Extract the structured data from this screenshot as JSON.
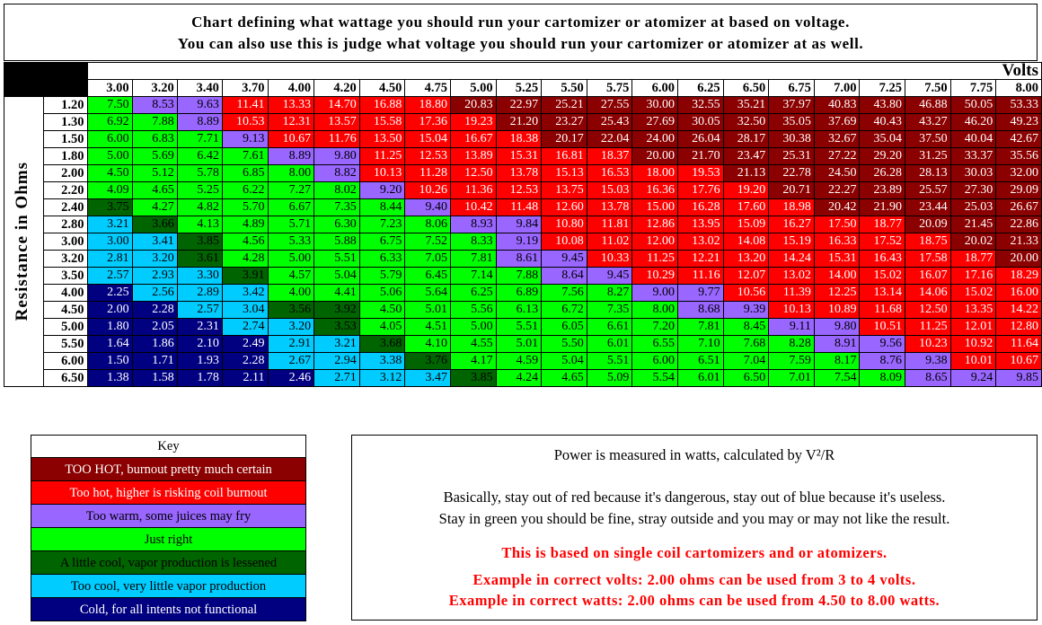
{
  "title": {
    "line1": "Chart defining what wattage you should run your cartomizer or atomizer at based on voltage.",
    "line2": "You can also use this is judge what voltage you should run your cartomizer or atomizer at as well."
  },
  "colors": {
    "dark": "#8B0000",
    "red": "#FF0000",
    "purple": "#9966FF",
    "green": "#00FF00",
    "dgreen": "#006400",
    "cyan": "#00CCFF",
    "blue": "#000080"
  },
  "chart_data": {
    "type": "heatmap",
    "xlabel": "Volts",
    "ylabel": "Resistance in Ohms",
    "x": [
      "3.00",
      "3.20",
      "3.40",
      "3.70",
      "4.00",
      "4.20",
      "4.50",
      "4.75",
      "5.00",
      "5.25",
      "5.50",
      "5.75",
      "6.00",
      "6.25",
      "6.50",
      "6.75",
      "7.00",
      "7.25",
      "7.50",
      "7.75",
      "8.00"
    ],
    "y": [
      "1.20",
      "1.30",
      "1.50",
      "1.80",
      "2.00",
      "2.20",
      "2.40",
      "2.80",
      "3.00",
      "3.20",
      "3.50",
      "4.00",
      "4.50",
      "5.00",
      "5.50",
      "6.00",
      "6.50"
    ],
    "values": [
      [
        "7.50",
        "8.53",
        "9.63",
        "11.41",
        "13.33",
        "14.70",
        "16.88",
        "18.80",
        "20.83",
        "22.97",
        "25.21",
        "27.55",
        "30.00",
        "32.55",
        "35.21",
        "37.97",
        "40.83",
        "43.80",
        "46.88",
        "50.05",
        "53.33"
      ],
      [
        "6.92",
        "7.88",
        "8.89",
        "10.53",
        "12.31",
        "13.57",
        "15.58",
        "17.36",
        "19.23",
        "21.20",
        "23.27",
        "25.43",
        "27.69",
        "30.05",
        "32.50",
        "35.05",
        "37.69",
        "40.43",
        "43.27",
        "46.20",
        "49.23"
      ],
      [
        "6.00",
        "6.83",
        "7.71",
        "9.13",
        "10.67",
        "11.76",
        "13.50",
        "15.04",
        "16.67",
        "18.38",
        "20.17",
        "22.04",
        "24.00",
        "26.04",
        "28.17",
        "30.38",
        "32.67",
        "35.04",
        "37.50",
        "40.04",
        "42.67"
      ],
      [
        "5.00",
        "5.69",
        "6.42",
        "7.61",
        "8.89",
        "9.80",
        "11.25",
        "12.53",
        "13.89",
        "15.31",
        "16.81",
        "18.37",
        "20.00",
        "21.70",
        "23.47",
        "25.31",
        "27.22",
        "29.20",
        "31.25",
        "33.37",
        "35.56"
      ],
      [
        "4.50",
        "5.12",
        "5.78",
        "6.85",
        "8.00",
        "8.82",
        "10.13",
        "11.28",
        "12.50",
        "13.78",
        "15.13",
        "16.53",
        "18.00",
        "19.53",
        "21.13",
        "22.78",
        "24.50",
        "26.28",
        "28.13",
        "30.03",
        "32.00"
      ],
      [
        "4.09",
        "4.65",
        "5.25",
        "6.22",
        "7.27",
        "8.02",
        "9.20",
        "10.26",
        "11.36",
        "12.53",
        "13.75",
        "15.03",
        "16.36",
        "17.76",
        "19.20",
        "20.71",
        "22.27",
        "23.89",
        "25.57",
        "27.30",
        "29.09"
      ],
      [
        "3.75",
        "4.27",
        "4.82",
        "5.70",
        "6.67",
        "7.35",
        "8.44",
        "9.40",
        "10.42",
        "11.48",
        "12.60",
        "13.78",
        "15.00",
        "16.28",
        "17.60",
        "18.98",
        "20.42",
        "21.90",
        "23.44",
        "25.03",
        "26.67"
      ],
      [
        "3.21",
        "3.66",
        "4.13",
        "4.89",
        "5.71",
        "6.30",
        "7.23",
        "8.06",
        "8.93",
        "9.84",
        "10.80",
        "11.81",
        "12.86",
        "13.95",
        "15.09",
        "16.27",
        "17.50",
        "18.77",
        "20.09",
        "21.45",
        "22.86"
      ],
      [
        "3.00",
        "3.41",
        "3.85",
        "4.56",
        "5.33",
        "5.88",
        "6.75",
        "7.52",
        "8.33",
        "9.19",
        "10.08",
        "11.02",
        "12.00",
        "13.02",
        "14.08",
        "15.19",
        "16.33",
        "17.52",
        "18.75",
        "20.02",
        "21.33"
      ],
      [
        "2.81",
        "3.20",
        "3.61",
        "4.28",
        "5.00",
        "5.51",
        "6.33",
        "7.05",
        "7.81",
        "8.61",
        "9.45",
        "10.33",
        "11.25",
        "12.21",
        "13.20",
        "14.24",
        "15.31",
        "16.43",
        "17.58",
        "18.77",
        "20.00"
      ],
      [
        "2.57",
        "2.93",
        "3.30",
        "3.91",
        "4.57",
        "5.04",
        "5.79",
        "6.45",
        "7.14",
        "7.88",
        "8.64",
        "9.45",
        "10.29",
        "11.16",
        "12.07",
        "13.02",
        "14.00",
        "15.02",
        "16.07",
        "17.16",
        "18.29"
      ],
      [
        "2.25",
        "2.56",
        "2.89",
        "3.42",
        "4.00",
        "4.41",
        "5.06",
        "5.64",
        "6.25",
        "6.89",
        "7.56",
        "8.27",
        "9.00",
        "9.77",
        "10.56",
        "11.39",
        "12.25",
        "13.14",
        "14.06",
        "15.02",
        "16.00"
      ],
      [
        "2.00",
        "2.28",
        "2.57",
        "3.04",
        "3.56",
        "3.92",
        "4.50",
        "5.01",
        "5.56",
        "6.13",
        "6.72",
        "7.35",
        "8.00",
        "8.68",
        "9.39",
        "10.13",
        "10.89",
        "11.68",
        "12.50",
        "13.35",
        "14.22"
      ],
      [
        "1.80",
        "2.05",
        "2.31",
        "2.74",
        "3.20",
        "3.53",
        "4.05",
        "4.51",
        "5.00",
        "5.51",
        "6.05",
        "6.61",
        "7.20",
        "7.81",
        "8.45",
        "9.11",
        "9.80",
        "10.51",
        "11.25",
        "12.01",
        "12.80"
      ],
      [
        "1.64",
        "1.86",
        "2.10",
        "2.49",
        "2.91",
        "3.21",
        "3.68",
        "4.10",
        "4.55",
        "5.01",
        "5.50",
        "6.01",
        "6.55",
        "7.10",
        "7.68",
        "8.28",
        "8.91",
        "9.56",
        "10.23",
        "10.92",
        "11.64"
      ],
      [
        "1.50",
        "1.71",
        "1.93",
        "2.28",
        "2.67",
        "2.94",
        "3.38",
        "3.76",
        "4.17",
        "4.59",
        "5.04",
        "5.51",
        "6.00",
        "6.51",
        "7.04",
        "7.59",
        "8.17",
        "8.76",
        "9.38",
        "10.01",
        "10.67"
      ],
      [
        "1.38",
        "1.58",
        "1.78",
        "2.11",
        "2.46",
        "2.71",
        "3.12",
        "3.47",
        "3.85",
        "4.24",
        "4.65",
        "5.09",
        "5.54",
        "6.01",
        "6.50",
        "7.01",
        "7.54",
        "8.09",
        "8.65",
        "9.24",
        "9.85"
      ]
    ],
    "categories_by_cell": [
      [
        "green",
        "purple",
        "purple",
        "red",
        "red",
        "red",
        "red",
        "red",
        "dark",
        "dark",
        "dark",
        "dark",
        "dark",
        "dark",
        "dark",
        "dark",
        "dark",
        "dark",
        "dark",
        "dark",
        "dark"
      ],
      [
        "green",
        "green",
        "purple",
        "red",
        "red",
        "red",
        "red",
        "red",
        "red",
        "dark",
        "dark",
        "dark",
        "dark",
        "dark",
        "dark",
        "dark",
        "dark",
        "dark",
        "dark",
        "dark",
        "dark"
      ],
      [
        "green",
        "green",
        "green",
        "purple",
        "red",
        "red",
        "red",
        "red",
        "red",
        "red",
        "dark",
        "dark",
        "dark",
        "dark",
        "dark",
        "dark",
        "dark",
        "dark",
        "dark",
        "dark",
        "dark"
      ],
      [
        "green",
        "green",
        "green",
        "green",
        "purple",
        "purple",
        "red",
        "red",
        "red",
        "red",
        "red",
        "red",
        "dark",
        "dark",
        "dark",
        "dark",
        "dark",
        "dark",
        "dark",
        "dark",
        "dark"
      ],
      [
        "green",
        "green",
        "green",
        "green",
        "green",
        "purple",
        "red",
        "red",
        "red",
        "red",
        "red",
        "red",
        "red",
        "red",
        "dark",
        "dark",
        "dark",
        "dark",
        "dark",
        "dark",
        "dark"
      ],
      [
        "green",
        "green",
        "green",
        "green",
        "green",
        "green",
        "purple",
        "red",
        "red",
        "red",
        "red",
        "red",
        "red",
        "red",
        "red",
        "dark",
        "dark",
        "dark",
        "dark",
        "dark",
        "dark"
      ],
      [
        "dgreen",
        "green",
        "green",
        "green",
        "green",
        "green",
        "green",
        "purple",
        "red",
        "red",
        "red",
        "red",
        "red",
        "red",
        "red",
        "red",
        "dark",
        "dark",
        "dark",
        "dark",
        "dark"
      ],
      [
        "cyan",
        "dgreen",
        "green",
        "green",
        "green",
        "green",
        "green",
        "green",
        "purple",
        "purple",
        "red",
        "red",
        "red",
        "red",
        "red",
        "red",
        "red",
        "red",
        "dark",
        "dark",
        "dark"
      ],
      [
        "cyan",
        "cyan",
        "dgreen",
        "green",
        "green",
        "green",
        "green",
        "green",
        "green",
        "purple",
        "red",
        "red",
        "red",
        "red",
        "red",
        "red",
        "red",
        "red",
        "red",
        "dark",
        "dark"
      ],
      [
        "cyan",
        "cyan",
        "dgreen",
        "green",
        "green",
        "green",
        "green",
        "green",
        "green",
        "purple",
        "purple",
        "red",
        "red",
        "red",
        "red",
        "red",
        "red",
        "red",
        "red",
        "red",
        "dark"
      ],
      [
        "cyan",
        "cyan",
        "cyan",
        "dgreen",
        "green",
        "green",
        "green",
        "green",
        "green",
        "green",
        "purple",
        "purple",
        "red",
        "red",
        "red",
        "red",
        "red",
        "red",
        "red",
        "red",
        "red"
      ],
      [
        "blue",
        "cyan",
        "cyan",
        "cyan",
        "green",
        "green",
        "green",
        "green",
        "green",
        "green",
        "green",
        "green",
        "purple",
        "purple",
        "red",
        "red",
        "red",
        "red",
        "red",
        "red",
        "red"
      ],
      [
        "blue",
        "blue",
        "cyan",
        "cyan",
        "dgreen",
        "dgreen",
        "green",
        "green",
        "green",
        "green",
        "green",
        "green",
        "green",
        "purple",
        "purple",
        "red",
        "red",
        "red",
        "red",
        "red",
        "red"
      ],
      [
        "blue",
        "blue",
        "blue",
        "cyan",
        "cyan",
        "dgreen",
        "green",
        "green",
        "green",
        "green",
        "green",
        "green",
        "green",
        "green",
        "green",
        "purple",
        "purple",
        "red",
        "red",
        "red",
        "red"
      ],
      [
        "blue",
        "blue",
        "blue",
        "blue",
        "cyan",
        "cyan",
        "dgreen",
        "green",
        "green",
        "green",
        "green",
        "green",
        "green",
        "green",
        "green",
        "green",
        "purple",
        "purple",
        "red",
        "red",
        "red"
      ],
      [
        "blue",
        "blue",
        "blue",
        "blue",
        "cyan",
        "cyan",
        "cyan",
        "dgreen",
        "green",
        "green",
        "green",
        "green",
        "green",
        "green",
        "green",
        "green",
        "green",
        "purple",
        "purple",
        "red",
        "red"
      ],
      [
        "blue",
        "blue",
        "blue",
        "blue",
        "blue",
        "cyan",
        "cyan",
        "cyan",
        "dgreen",
        "green",
        "green",
        "green",
        "green",
        "green",
        "green",
        "green",
        "green",
        "green",
        "purple",
        "purple",
        "purple"
      ]
    ]
  },
  "key": {
    "title": "Key",
    "items": [
      {
        "label": "TOO HOT, burnout pretty much certain",
        "cat": "dark"
      },
      {
        "label": "Too hot, higher is risking coil burnout",
        "cat": "red"
      },
      {
        "label": "Too warm, some juices may fry",
        "cat": "purple"
      },
      {
        "label": "Just right",
        "cat": "green"
      },
      {
        "label": "A little cool, vapor production is lessened",
        "cat": "dgreen"
      },
      {
        "label": "Too cool, very little vapor production",
        "cat": "cyan"
      },
      {
        "label": "Cold, for all intents not functional",
        "cat": "blue"
      }
    ]
  },
  "info": {
    "power": "Power is measured in watts, calculated by V²/R",
    "basically1": "Basically, stay out of red because it's dangerous, stay out of blue because it's useless.",
    "basically2": "Stay in green you should be fine, stray outside and you may or may not like the result.",
    "single_coil": "This is based on single coil cartomizers and or atomizers.",
    "example_volts": "Example in correct volts: 2.00 ohms can be used from 3 to 4 volts.",
    "example_watts": "Example in correct watts: 2.00 ohms can be used from 4.50 to 8.00 watts."
  }
}
